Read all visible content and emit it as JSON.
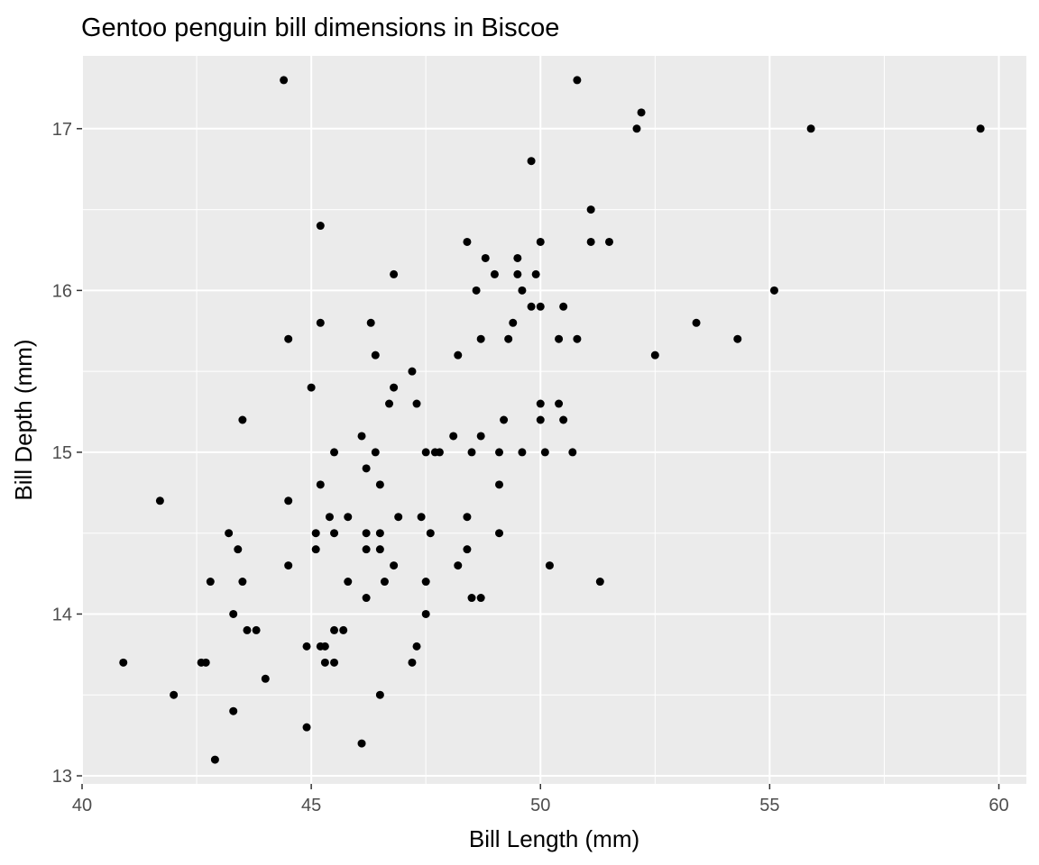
{
  "chart_data": {
    "type": "scatter",
    "title": "Gentoo penguin bill dimensions in Biscoe",
    "xlabel": "Bill Length (mm)",
    "ylabel": "Bill Depth (mm)",
    "xlim": [
      40.0,
      60.6
    ],
    "ylim": [
      12.95,
      17.45
    ],
    "x_ticks": [
      40,
      45,
      50,
      55,
      60
    ],
    "x_tick_labels": [
      "40",
      "45",
      "50",
      "55",
      "60"
    ],
    "y_ticks": [
      13,
      14,
      15,
      16,
      17
    ],
    "y_tick_labels": [
      "13",
      "14",
      "15",
      "16",
      "17"
    ],
    "grid": true,
    "panel_color": "#ebebeb",
    "grid_color": "#ffffff",
    "point_color": "#000000",
    "points": [
      [
        40.9,
        13.7
      ],
      [
        41.7,
        14.7
      ],
      [
        42.0,
        13.5
      ],
      [
        42.6,
        13.7
      ],
      [
        42.7,
        13.7
      ],
      [
        42.8,
        14.2
      ],
      [
        42.9,
        13.1
      ],
      [
        43.2,
        14.5
      ],
      [
        43.3,
        14.0
      ],
      [
        43.3,
        13.4
      ],
      [
        43.4,
        14.4
      ],
      [
        43.5,
        14.2
      ],
      [
        43.5,
        15.2
      ],
      [
        43.6,
        13.9
      ],
      [
        43.8,
        13.9
      ],
      [
        44.0,
        13.6
      ],
      [
        44.4,
        17.3
      ],
      [
        44.5,
        15.7
      ],
      [
        44.5,
        14.7
      ],
      [
        44.5,
        14.3
      ],
      [
        44.9,
        13.8
      ],
      [
        44.9,
        13.3
      ],
      [
        45.0,
        15.4
      ],
      [
        45.1,
        14.5
      ],
      [
        45.1,
        14.4
      ],
      [
        45.2,
        16.4
      ],
      [
        45.2,
        15.8
      ],
      [
        45.2,
        14.8
      ],
      [
        45.2,
        13.8
      ],
      [
        45.3,
        13.8
      ],
      [
        45.3,
        13.7
      ],
      [
        45.4,
        14.6
      ],
      [
        45.5,
        15.0
      ],
      [
        45.5,
        14.5
      ],
      [
        45.5,
        13.9
      ],
      [
        45.5,
        13.7
      ],
      [
        45.7,
        13.9
      ],
      [
        45.8,
        14.6
      ],
      [
        45.8,
        14.2
      ],
      [
        46.1,
        15.1
      ],
      [
        46.1,
        13.2
      ],
      [
        46.2,
        14.9
      ],
      [
        46.2,
        14.5
      ],
      [
        46.2,
        14.4
      ],
      [
        46.2,
        14.1
      ],
      [
        46.3,
        15.8
      ],
      [
        46.4,
        15.6
      ],
      [
        46.4,
        15.0
      ],
      [
        46.5,
        14.8
      ],
      [
        46.5,
        14.5
      ],
      [
        46.5,
        14.4
      ],
      [
        46.5,
        13.5
      ],
      [
        46.6,
        14.2
      ],
      [
        46.7,
        15.3
      ],
      [
        46.8,
        16.1
      ],
      [
        46.8,
        15.4
      ],
      [
        46.8,
        14.3
      ],
      [
        46.9,
        14.6
      ],
      [
        47.2,
        15.5
      ],
      [
        47.2,
        13.7
      ],
      [
        47.3,
        15.3
      ],
      [
        47.3,
        13.8
      ],
      [
        47.4,
        14.6
      ],
      [
        47.5,
        15.0
      ],
      [
        47.5,
        14.2
      ],
      [
        47.5,
        14.0
      ],
      [
        47.6,
        14.5
      ],
      [
        47.7,
        15.0
      ],
      [
        47.8,
        15.0
      ],
      [
        48.1,
        15.1
      ],
      [
        48.2,
        15.6
      ],
      [
        48.2,
        14.3
      ],
      [
        48.4,
        16.3
      ],
      [
        48.4,
        14.6
      ],
      [
        48.4,
        14.4
      ],
      [
        48.5,
        15.0
      ],
      [
        48.5,
        14.1
      ],
      [
        48.6,
        16.0
      ],
      [
        48.7,
        15.7
      ],
      [
        48.7,
        15.1
      ],
      [
        48.7,
        14.1
      ],
      [
        48.8,
        16.2
      ],
      [
        49.0,
        16.1
      ],
      [
        49.1,
        15.0
      ],
      [
        49.1,
        14.8
      ],
      [
        49.1,
        14.5
      ],
      [
        49.2,
        15.2
      ],
      [
        49.3,
        15.7
      ],
      [
        49.4,
        15.8
      ],
      [
        49.5,
        16.2
      ],
      [
        49.5,
        16.1
      ],
      [
        49.6,
        16.0
      ],
      [
        49.6,
        15.0
      ],
      [
        49.8,
        16.8
      ],
      [
        49.8,
        15.9
      ],
      [
        49.9,
        16.1
      ],
      [
        50.0,
        16.3
      ],
      [
        50.0,
        15.9
      ],
      [
        50.0,
        15.3
      ],
      [
        50.0,
        15.2
      ],
      [
        50.1,
        15.0
      ],
      [
        50.2,
        14.3
      ],
      [
        50.4,
        15.7
      ],
      [
        50.4,
        15.3
      ],
      [
        50.5,
        15.9
      ],
      [
        50.5,
        15.2
      ],
      [
        50.7,
        15.0
      ],
      [
        50.8,
        17.3
      ],
      [
        50.8,
        15.7
      ],
      [
        51.1,
        16.5
      ],
      [
        51.1,
        16.3
      ],
      [
        51.3,
        14.2
      ],
      [
        51.5,
        16.3
      ],
      [
        52.1,
        17.0
      ],
      [
        52.2,
        17.1
      ],
      [
        52.5,
        15.6
      ],
      [
        53.4,
        15.8
      ],
      [
        54.3,
        15.7
      ],
      [
        55.1,
        16.0
      ],
      [
        55.9,
        17.0
      ],
      [
        59.6,
        17.0
      ]
    ]
  }
}
